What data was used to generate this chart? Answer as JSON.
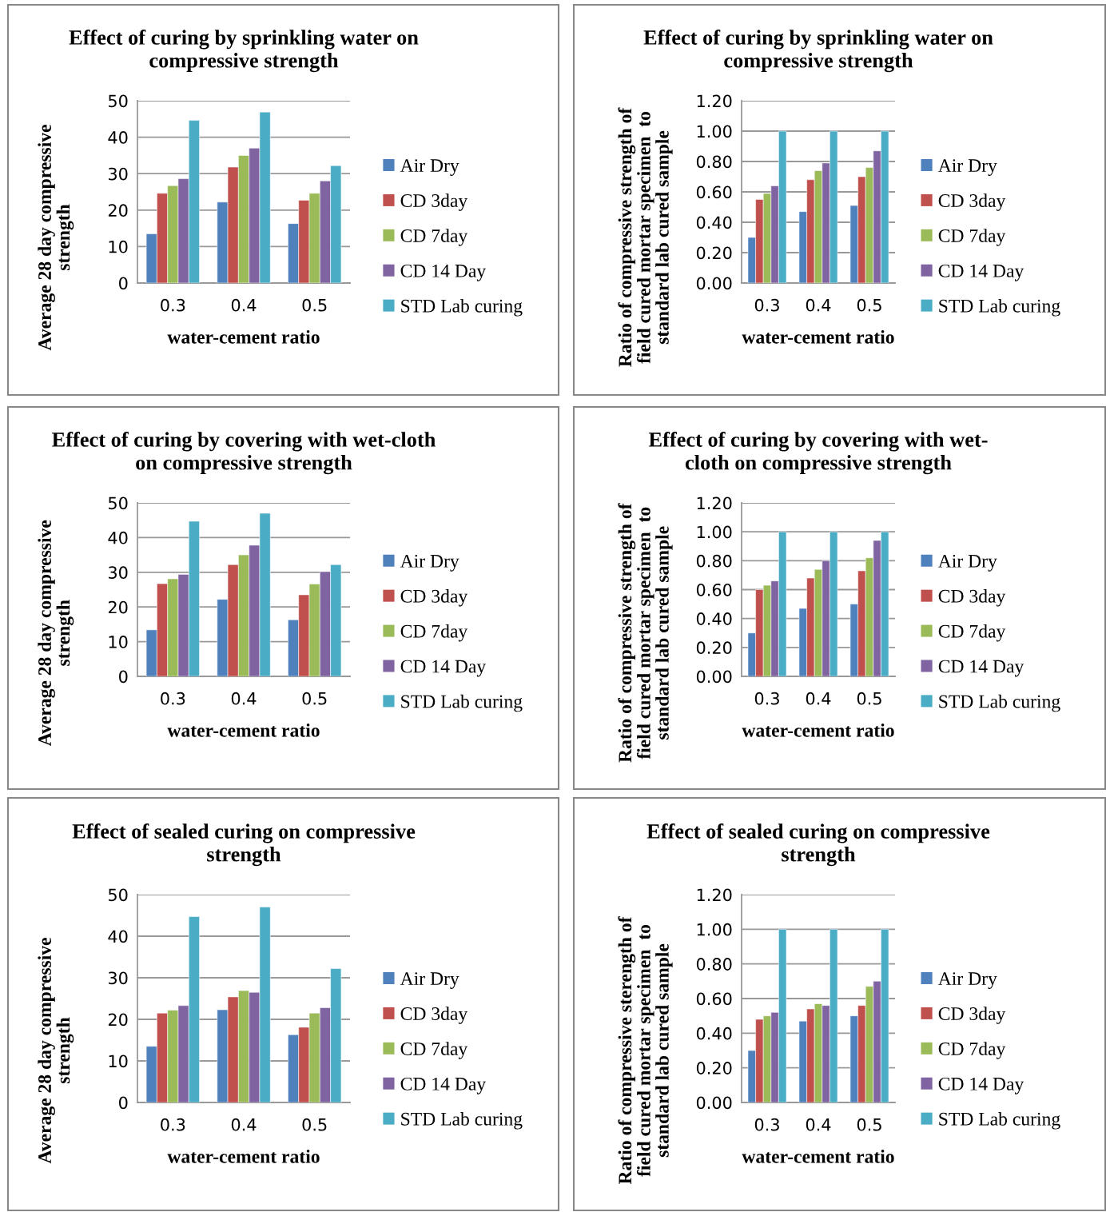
{
  "chart_data": [
    {
      "type": "bar",
      "title": "Effect of curing by sprinkling water on\ncompressive strength",
      "xlabel": "water-cement ratio",
      "ylabel": "Average 28 day compressive\nstrength",
      "categories": [
        "0.3",
        "0.4",
        "0.5"
      ],
      "ylim": [
        0,
        50
      ],
      "yticks": [
        0,
        10,
        20,
        30,
        40,
        50
      ],
      "grid": "y",
      "legend": "right",
      "series": [
        {
          "name": "Air Dry",
          "color": "#4f81bd",
          "values": [
            13.5,
            22.2,
            16.3
          ]
        },
        {
          "name": "CD 3day",
          "color": "#c0504d",
          "values": [
            24.6,
            31.8,
            22.7
          ]
        },
        {
          "name": "CD 7day",
          "color": "#9bbb59",
          "values": [
            26.7,
            35.0,
            24.6
          ]
        },
        {
          "name": "CD 14 Day",
          "color": "#8064a2",
          "values": [
            28.6,
            37.0,
            28.0
          ]
        },
        {
          "name": "STD Lab curing",
          "color": "#4bacc6",
          "values": [
            44.6,
            46.9,
            32.2
          ]
        }
      ]
    },
    {
      "type": "bar",
      "title": "Effect of curing by sprinkling water on\ncompressive strength",
      "xlabel": "water-cement ratio",
      "ylabel": "Ratio of compressive strength of\nfield cured mortar specimen  to\nstandard lab cured sample",
      "categories": [
        "0.3",
        "0.4",
        "0.5"
      ],
      "ylim": [
        0,
        1.2
      ],
      "yticks": [
        {
          "value": 0,
          "label": "0.00"
        },
        {
          "value": 0.2,
          "label": "0.20"
        },
        {
          "value": 0.4,
          "label": "0.40"
        },
        {
          "value": 0.6,
          "label": "0.60"
        },
        {
          "value": 0.8,
          "label": "0.80"
        },
        {
          "value": 1.0,
          "label": "1.00"
        },
        {
          "value": 1.2,
          "label": "1.20"
        }
      ],
      "grid": "y",
      "legend": "right",
      "series": [
        {
          "name": "Air Dry",
          "color": "#4f81bd",
          "values": [
            0.3,
            0.47,
            0.51
          ]
        },
        {
          "name": "CD 3day",
          "color": "#c0504d",
          "values": [
            0.55,
            0.68,
            0.7
          ]
        },
        {
          "name": "CD 7day",
          "color": "#9bbb59",
          "values": [
            0.59,
            0.74,
            0.76
          ]
        },
        {
          "name": "CD 14 Day",
          "color": "#8064a2",
          "values": [
            0.64,
            0.79,
            0.87
          ]
        },
        {
          "name": "STD Lab curing",
          "color": "#4bacc6",
          "values": [
            1.0,
            1.0,
            1.0
          ]
        }
      ]
    },
    {
      "type": "bar",
      "title": "Effect of curing by covering with wet-cloth\non compressive strength",
      "xlabel": "water-cement ratio",
      "ylabel": "Average 28 day compressive\nstrength",
      "categories": [
        "0.3",
        "0.4",
        "0.5"
      ],
      "ylim": [
        0,
        50
      ],
      "yticks": [
        0,
        10,
        20,
        30,
        40,
        50
      ],
      "grid": "y",
      "legend": "right",
      "series": [
        {
          "name": "Air Dry",
          "color": "#4f81bd",
          "values": [
            13.4,
            22.2,
            16.3
          ]
        },
        {
          "name": "CD 3day",
          "color": "#c0504d",
          "values": [
            26.7,
            32.2,
            23.5
          ]
        },
        {
          "name": "CD 7day",
          "color": "#9bbb59",
          "values": [
            28.1,
            35.0,
            26.6
          ]
        },
        {
          "name": "CD 14 Day",
          "color": "#8064a2",
          "values": [
            29.4,
            37.8,
            30.2
          ]
        },
        {
          "name": "STD Lab curing",
          "color": "#4bacc6",
          "values": [
            44.7,
            47.0,
            32.2
          ]
        }
      ]
    },
    {
      "type": "bar",
      "title": "Effect of curing by covering with wet-\ncloth on compressive strength",
      "xlabel": "water-cement ratio",
      "ylabel": "Ratio of compressive strength of\nfield cured mortar specimen  to\nstandard lab cured sample",
      "categories": [
        "0.3",
        "0.4",
        "0.5"
      ],
      "ylim": [
        0,
        1.2
      ],
      "yticks": [
        {
          "value": 0,
          "label": "0.00"
        },
        {
          "value": 0.2,
          "label": "0.20"
        },
        {
          "value": 0.4,
          "label": "0.40"
        },
        {
          "value": 0.6,
          "label": "0.60"
        },
        {
          "value": 0.8,
          "label": "0.80"
        },
        {
          "value": 1.0,
          "label": "1.00"
        },
        {
          "value": 1.2,
          "label": "1.20"
        }
      ],
      "grid": "y",
      "legend": "right",
      "series": [
        {
          "name": "Air Dry",
          "color": "#4f81bd",
          "values": [
            0.3,
            0.47,
            0.5
          ]
        },
        {
          "name": "CD 3day",
          "color": "#c0504d",
          "values": [
            0.6,
            0.68,
            0.73
          ]
        },
        {
          "name": "CD 7day",
          "color": "#9bbb59",
          "values": [
            0.63,
            0.74,
            0.82
          ]
        },
        {
          "name": "CD 14 Day",
          "color": "#8064a2",
          "values": [
            0.66,
            0.8,
            0.94
          ]
        },
        {
          "name": "STD Lab curing",
          "color": "#4bacc6",
          "values": [
            1.0,
            1.0,
            1.0
          ]
        }
      ]
    },
    {
      "type": "bar",
      "title": "Effect of sealed curing on compressive\nstrength",
      "xlabel": "water-cement ratio",
      "ylabel": "Average 28 day compressive\nstrength",
      "categories": [
        "0.3",
        "0.4",
        "0.5"
      ],
      "ylim": [
        0,
        50
      ],
      "yticks": [
        0,
        10,
        20,
        30,
        40,
        50
      ],
      "grid": "y",
      "legend": "right",
      "series": [
        {
          "name": "Air Dry",
          "color": "#4f81bd",
          "values": [
            13.5,
            22.3,
            16.3
          ]
        },
        {
          "name": "CD 3day",
          "color": "#c0504d",
          "values": [
            21.5,
            25.4,
            18.1
          ]
        },
        {
          "name": "CD 7day",
          "color": "#9bbb59",
          "values": [
            22.2,
            26.9,
            21.5
          ]
        },
        {
          "name": "CD 14 Day",
          "color": "#8064a2",
          "values": [
            23.3,
            26.5,
            22.8
          ]
        },
        {
          "name": "STD Lab curing",
          "color": "#4bacc6",
          "values": [
            44.7,
            47.0,
            32.2
          ]
        }
      ]
    },
    {
      "type": "bar",
      "title": "Effect of sealed curing on compressive\nstrength",
      "xlabel": "water-cement ratio",
      "ylabel": "Ratio of compressive sterength of\nfield cured mortar specimen  to\nstandard lab cured sample",
      "categories": [
        "0.3",
        "0.4",
        "0.5"
      ],
      "ylim": [
        0,
        1.2
      ],
      "yticks": [
        {
          "value": 0,
          "label": "0.00"
        },
        {
          "value": 0.2,
          "label": "0.20"
        },
        {
          "value": 0.4,
          "label": "0.40"
        },
        {
          "value": 0.6,
          "label": "0.60"
        },
        {
          "value": 0.8,
          "label": "0.80"
        },
        {
          "value": 1.0,
          "label": "1.00"
        },
        {
          "value": 1.2,
          "label": "1.20"
        }
      ],
      "grid": "y",
      "legend": "right",
      "series": [
        {
          "name": "Air Dry",
          "color": "#4f81bd",
          "values": [
            0.3,
            0.47,
            0.5
          ]
        },
        {
          "name": "CD 3day",
          "color": "#c0504d",
          "values": [
            0.48,
            0.54,
            0.56
          ]
        },
        {
          "name": "CD 7day",
          "color": "#9bbb59",
          "values": [
            0.5,
            0.57,
            0.67
          ]
        },
        {
          "name": "CD 14 Day",
          "color": "#8064a2",
          "values": [
            0.52,
            0.56,
            0.7
          ]
        },
        {
          "name": "STD Lab curing",
          "color": "#4bacc6",
          "values": [
            1.0,
            1.0,
            1.0
          ]
        }
      ]
    }
  ]
}
